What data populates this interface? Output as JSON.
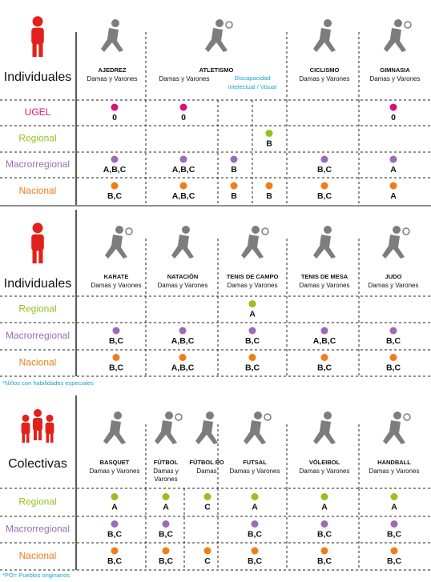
{
  "sections": [
    {
      "group": "Individuales",
      "icon": "single",
      "headers": [
        {
          "name": "AJEDREZ",
          "sub": "Damas y Varones"
        },
        {
          "name": "ATLETISMO",
          "sub": "Damas y Varones",
          "extra": "Discapacidad",
          "extra2": "intelectual  /  Visual"
        },
        {
          "name": "CICLISMO",
          "sub": "Damas y Varones"
        },
        {
          "name": "GIMNASIA",
          "sub": "Damas y Varones"
        }
      ],
      "rows": [
        {
          "level": "UGEL",
          "cells": [
            "0",
            "0",
            null,
            null,
            null,
            "0"
          ]
        },
        {
          "level": "Regional",
          "cells": [
            null,
            null,
            null,
            "B",
            null,
            null
          ]
        },
        {
          "level": "Macrorregional",
          "cells": [
            "A,B,C",
            "A,B,C",
            "B",
            null,
            "B,C",
            "A"
          ]
        },
        {
          "level": "Nacional",
          "cells": [
            "B,C",
            "A,B,C",
            "B",
            "B",
            "B,C",
            "A"
          ]
        }
      ]
    },
    {
      "group": "Individuales",
      "icon": "single",
      "headers": [
        {
          "name": "KARATE",
          "sub": "Damas y Varones"
        },
        {
          "name": "NATACIÓN",
          "sub": "Damas y Varones"
        },
        {
          "name": "TENIS DE CAMPO",
          "sub": "Damas y Varones"
        },
        {
          "name": "TENIS DE MESA",
          "sub": "Damas y Varones"
        },
        {
          "name": "JUDO",
          "sub": "Damas y Varones"
        }
      ],
      "rows": [
        {
          "level": "Regional",
          "cells": [
            null,
            null,
            "A",
            null,
            null
          ]
        },
        {
          "level": "Macrorregional",
          "cells": [
            "B,C",
            "A,B,C",
            "B,C",
            "A,B,C",
            "B,C"
          ]
        },
        {
          "level": "Nacional",
          "cells": [
            "B,C",
            "A,B,C",
            "B,C",
            "B,C",
            "B,C"
          ]
        }
      ],
      "note": "*Niños con habilidades especiales"
    },
    {
      "group": "Colectivas",
      "icon": "group",
      "headers": [
        {
          "name": "BASQUET",
          "sub": "Damas y Varones"
        },
        {
          "name": "FÚTBOL",
          "sub": "Damas y",
          "sub2": "Varones"
        },
        {
          "name": "FÚTBOL PO",
          "sub": "Damas"
        },
        {
          "name": "FUTSAL",
          "sub": "Damas y Varones"
        },
        {
          "name": "VÓLEIBOL",
          "sub": "Damas y Varones"
        },
        {
          "name": "HANDBALL",
          "sub": "Damas y Varones"
        }
      ],
      "rows": [
        {
          "level": "Regional",
          "cells": [
            "A",
            "A",
            "C",
            "A",
            "A",
            "A"
          ]
        },
        {
          "level": "Macrorregional",
          "cells": [
            "B,C",
            "B,C",
            null,
            "B,C",
            "B,C",
            "B,C"
          ]
        },
        {
          "level": "Nacional",
          "cells": [
            "B,C",
            "B,C",
            "C",
            "B,C",
            "B,C",
            "B,C"
          ]
        }
      ],
      "note": "*PO= Pueblos originarios"
    }
  ]
}
